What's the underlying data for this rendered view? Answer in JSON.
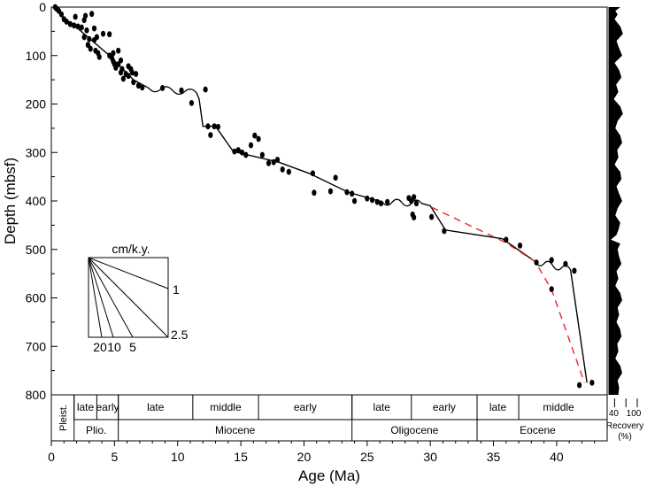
{
  "chart_data": {
    "type": "scatter",
    "xlabel": "Age (Ma)",
    "ylabel": "Depth (mbsf)",
    "xlim": [
      0,
      44
    ],
    "ylim": [
      0,
      800
    ],
    "xticks": [
      "0",
      "5",
      "10",
      "15",
      "20",
      "25",
      "30",
      "35",
      "40"
    ],
    "yticks": [
      "0",
      "100",
      "200",
      "300",
      "400",
      "500",
      "600",
      "700",
      "800"
    ],
    "grid": false,
    "subepochs": [
      {
        "label": "late",
        "start": 1.8,
        "end": 3.6
      },
      {
        "label": "early",
        "start": 3.6,
        "end": 5.3
      },
      {
        "label": "late",
        "start": 5.3,
        "end": 11.2
      },
      {
        "label": "middle",
        "start": 11.2,
        "end": 16.4
      },
      {
        "label": "early",
        "start": 16.4,
        "end": 23.8
      },
      {
        "label": "late",
        "start": 23.8,
        "end": 28.5
      },
      {
        "label": "early",
        "start": 28.5,
        "end": 33.7
      },
      {
        "label": "late",
        "start": 33.7,
        "end": 37.0
      },
      {
        "label": "middle",
        "start": 37.0,
        "end": 43.3
      }
    ],
    "epochs": [
      {
        "label": "Pleist.",
        "start": 0.0,
        "end": 1.8,
        "vertical": true
      },
      {
        "label": "Plio.",
        "start": 1.8,
        "end": 5.3
      },
      {
        "label": "Miocene",
        "start": 5.3,
        "end": 23.8
      },
      {
        "label": "Oligocene",
        "start": 23.8,
        "end": 33.7
      },
      {
        "label": "Eocene",
        "start": 33.7,
        "end": 43.3
      }
    ],
    "points": [
      [
        0.3,
        0
      ],
      [
        0.4,
        3
      ],
      [
        0.5,
        5
      ],
      [
        0.6,
        8
      ],
      [
        0.8,
        15
      ],
      [
        1.0,
        25
      ],
      [
        1.2,
        30
      ],
      [
        1.5,
        35
      ],
      [
        1.8,
        38
      ],
      [
        2.1,
        40
      ],
      [
        1.9,
        20
      ],
      [
        2.7,
        18
      ],
      [
        2.6,
        27
      ],
      [
        3.2,
        14
      ],
      [
        2.4,
        42
      ],
      [
        2.8,
        48
      ],
      [
        2.6,
        62
      ],
      [
        3.0,
        66
      ],
      [
        3.4,
        68
      ],
      [
        2.9,
        78
      ],
      [
        3.1,
        86
      ],
      [
        3.5,
        90
      ],
      [
        3.7,
        95
      ],
      [
        3.8,
        103
      ],
      [
        3.4,
        44
      ],
      [
        4.1,
        55
      ],
      [
        4.6,
        56
      ],
      [
        3.6,
        62
      ],
      [
        4.6,
        100
      ],
      [
        4.8,
        105
      ],
      [
        4.9,
        112
      ],
      [
        5.0,
        118
      ],
      [
        5.1,
        125
      ],
      [
        5.3,
        118
      ],
      [
        5.5,
        110
      ],
      [
        4.9,
        95
      ],
      [
        5.3,
        90
      ],
      [
        5.6,
        128
      ],
      [
        5.5,
        135
      ],
      [
        5.7,
        148
      ],
      [
        6.1,
        142
      ],
      [
        6.4,
        135
      ],
      [
        6.7,
        138
      ],
      [
        6.5,
        155
      ],
      [
        6.9,
        162
      ],
      [
        7.2,
        166
      ],
      [
        6.1,
        122
      ],
      [
        6.3,
        128
      ],
      [
        5.9,
        138
      ],
      [
        8.8,
        167
      ],
      [
        10.3,
        172
      ],
      [
        11.1,
        198
      ],
      [
        12.2,
        170
      ],
      [
        12.4,
        246
      ],
      [
        12.6,
        264
      ],
      [
        12.9,
        246
      ],
      [
        13.2,
        247
      ],
      [
        14.5,
        298
      ],
      [
        14.8,
        295
      ],
      [
        15.1,
        300
      ],
      [
        15.4,
        305
      ],
      [
        15.8,
        285
      ],
      [
        16.1,
        265
      ],
      [
        16.4,
        272
      ],
      [
        16.7,
        305
      ],
      [
        17.2,
        322
      ],
      [
        17.6,
        320
      ],
      [
        17.9,
        315
      ],
      [
        18.3,
        335
      ],
      [
        18.8,
        340
      ],
      [
        20.7,
        343
      ],
      [
        20.8,
        383
      ],
      [
        22.5,
        352
      ],
      [
        22.1,
        380
      ],
      [
        23.4,
        382
      ],
      [
        23.8,
        385
      ],
      [
        24.0,
        400
      ],
      [
        25.0,
        395
      ],
      [
        25.4,
        398
      ],
      [
        25.8,
        402
      ],
      [
        26.1,
        405
      ],
      [
        26.6,
        402
      ],
      [
        28.3,
        394
      ],
      [
        28.5,
        400
      ],
      [
        28.7,
        392
      ],
      [
        28.9,
        405
      ],
      [
        28.6,
        428
      ],
      [
        28.7,
        434
      ],
      [
        30.1,
        433
      ],
      [
        31.1,
        462
      ],
      [
        36.0,
        480
      ],
      [
        37.1,
        492
      ],
      [
        38.4,
        527
      ],
      [
        39.6,
        522
      ],
      [
        40.7,
        530
      ],
      [
        41.4,
        544
      ],
      [
        39.6,
        582
      ],
      [
        41.8,
        780
      ],
      [
        42.8,
        775
      ]
    ],
    "age_model_line": [
      [
        0.4,
        2
      ],
      [
        1.0,
        22
      ],
      [
        1.9,
        40
      ],
      [
        2.9,
        62
      ],
      [
        4.6,
        100
      ],
      [
        6.5,
        150
      ],
      [
        7.7,
        167
      ]
    ],
    "hiatuses": [
      {
        "from": [
          7.7,
          167
        ],
        "to": [
          11.5,
          177
        ]
      },
      {
        "from": [
          26.2,
          402
        ],
        "to": [
          29.3,
          405
        ]
      },
      {
        "from": [
          38.3,
          525
        ],
        "to": [
          41.1,
          542
        ]
      }
    ],
    "age_model_line_2": [
      [
        11.5,
        177
      ],
      [
        11.7,
        190
      ],
      [
        12.0,
        246
      ],
      [
        13.0,
        246
      ],
      [
        14.4,
        298
      ],
      [
        18.0,
        320
      ],
      [
        20.4,
        343
      ],
      [
        23.5,
        382
      ],
      [
        26.2,
        402
      ]
    ],
    "age_model_line_3": [
      [
        29.3,
        405
      ],
      [
        30.0,
        410
      ],
      [
        31.2,
        460
      ],
      [
        35.7,
        478
      ],
      [
        38.3,
        525
      ]
    ],
    "age_model_line_4": [
      [
        41.1,
        542
      ],
      [
        42.4,
        775
      ]
    ],
    "alternative_model_dashed": [
      [
        30.1,
        413
      ],
      [
        35.9,
        485
      ],
      [
        38.3,
        525
      ],
      [
        39.6,
        583
      ],
      [
        42.2,
        775
      ]
    ],
    "alternative_color": "#e8262c",
    "rate_key": {
      "title": "cm/k.y.",
      "labels_right": [
        "1",
        "2.5"
      ],
      "labels_bottom": [
        "20",
        "10",
        "5"
      ]
    },
    "recovery": {
      "label": "Recovery",
      "unit": "(%)",
      "tick_labels": [
        "40",
        "100"
      ],
      "ticks": [
        40,
        70,
        100
      ],
      "min": 25,
      "max": 100,
      "profile": [
        [
          0,
          55
        ],
        [
          8,
          42
        ],
        [
          15,
          48
        ],
        [
          25,
          40
        ],
        [
          40,
          55
        ],
        [
          55,
          62
        ],
        [
          70,
          45
        ],
        [
          85,
          52
        ],
        [
          100,
          60
        ],
        [
          115,
          40
        ],
        [
          130,
          52
        ],
        [
          145,
          58
        ],
        [
          160,
          44
        ],
        [
          175,
          50
        ],
        [
          190,
          38
        ],
        [
          205,
          55
        ],
        [
          220,
          62
        ],
        [
          235,
          48
        ],
        [
          250,
          42
        ],
        [
          265,
          55
        ],
        [
          280,
          60
        ],
        [
          295,
          47
        ],
        [
          310,
          50
        ],
        [
          325,
          40
        ],
        [
          340,
          55
        ],
        [
          355,
          58
        ],
        [
          370,
          45
        ],
        [
          385,
          52
        ],
        [
          400,
          60
        ],
        [
          415,
          48
        ],
        [
          430,
          42
        ],
        [
          445,
          55
        ],
        [
          460,
          50
        ],
        [
          470,
          45
        ],
        [
          480,
          30
        ],
        [
          488,
          55
        ],
        [
          500,
          48
        ],
        [
          515,
          52
        ],
        [
          530,
          58
        ],
        [
          545,
          45
        ],
        [
          560,
          50
        ],
        [
          575,
          42
        ],
        [
          590,
          55
        ],
        [
          605,
          60
        ],
        [
          620,
          48
        ],
        [
          635,
          52
        ],
        [
          650,
          45
        ],
        [
          665,
          55
        ],
        [
          680,
          58
        ],
        [
          695,
          47
        ],
        [
          710,
          50
        ],
        [
          725,
          42
        ],
        [
          740,
          55
        ],
        [
          755,
          60
        ],
        [
          770,
          48
        ],
        [
          785,
          52
        ],
        [
          800,
          50
        ]
      ]
    }
  }
}
